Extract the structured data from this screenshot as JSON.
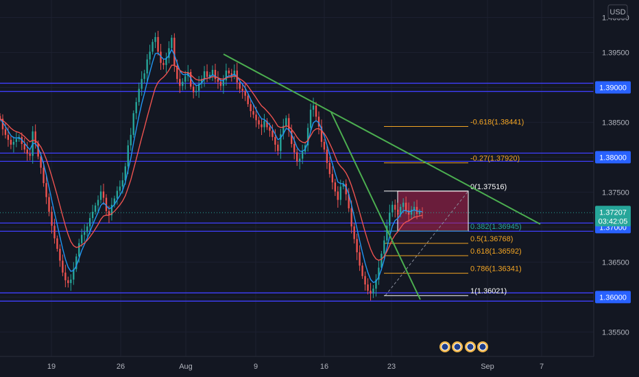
{
  "currency": "USD",
  "chart_data": {
    "type": "candlestick",
    "instrument_currency": "USD",
    "x_ticks": [
      "19",
      "26",
      "Aug",
      "9",
      "16",
      "23",
      "Sep",
      "7"
    ],
    "y_ticks": [
      "1.40000",
      "1.39500",
      "1.38500",
      "1.37500",
      "1.36500",
      "1.35500"
    ],
    "y_range": [
      1.3515,
      1.4025
    ],
    "current_price": "1.37207",
    "countdown": "03:42:05",
    "horizontal_levels": [
      {
        "price": 1.39,
        "label": "1.39000"
      },
      {
        "price": 1.38,
        "label": "1.38000"
      },
      {
        "price": 1.37,
        "label": "1.37000"
      },
      {
        "price": 1.36,
        "label": "1.36000"
      }
    ],
    "fibonacci": [
      {
        "ratio": "-0.618",
        "price": 1.38441,
        "label": "-0.618(1.38441)",
        "color": "#f5a623"
      },
      {
        "ratio": "-0.27",
        "price": 1.3792,
        "label": "-0.27(1.37920)",
        "color": "#f5a623"
      },
      {
        "ratio": "0",
        "price": 1.37516,
        "label": "0(1.37516)",
        "color": "#ffffff"
      },
      {
        "ratio": "0.382",
        "price": 1.36945,
        "label": "0.382(1.36945)",
        "color": "#26a69a"
      },
      {
        "ratio": "0.5",
        "price": 1.36768,
        "label": "0.5(1.36768)",
        "color": "#f5a623"
      },
      {
        "ratio": "0.618",
        "price": 1.36592,
        "label": "0.618(1.36592)",
        "color": "#f5a623"
      },
      {
        "ratio": "0.786",
        "price": 1.36341,
        "label": "0.786(1.36341)",
        "color": "#f5a623"
      },
      {
        "ratio": "1",
        "price": 1.36021,
        "label": "1(1.36021)",
        "color": "#ffffff"
      }
    ],
    "closes": [
      1.3855,
      1.384,
      1.3832,
      1.3825,
      1.3818,
      1.3822,
      1.3826,
      1.3829,
      1.3819,
      1.3811,
      1.3805,
      1.3802,
      1.3837,
      1.382,
      1.3801,
      1.3785,
      1.3763,
      1.3743,
      1.3722,
      1.3702,
      1.3684,
      1.3669,
      1.3652,
      1.3635,
      1.3624,
      1.362,
      1.3625,
      1.364,
      1.3658,
      1.3677,
      1.3689,
      1.3693,
      1.3701,
      1.3713,
      1.3722,
      1.3731,
      1.3739,
      1.3751,
      1.3742,
      1.3723,
      1.3717,
      1.3732,
      1.3741,
      1.3752,
      1.3758,
      1.3767,
      1.3787,
      1.3817,
      1.3832,
      1.3863,
      1.3879,
      1.3898,
      1.3912,
      1.392,
      1.394,
      1.3951,
      1.3965,
      1.3972,
      1.3951,
      1.3935,
      1.3932,
      1.3942,
      1.3956,
      1.3971,
      1.3931,
      1.3912,
      1.3902,
      1.3908,
      1.3916,
      1.3922,
      1.3901,
      1.3893,
      1.3895,
      1.3905,
      1.3912,
      1.3923,
      1.3915,
      1.3918,
      1.3925,
      1.3912,
      1.3908,
      1.3902,
      1.391,
      1.3924,
      1.392,
      1.3917,
      1.3924,
      1.3907,
      1.3898,
      1.3895,
      1.3888,
      1.3876,
      1.3866,
      1.3861,
      1.3853,
      1.3847,
      1.3843,
      1.3852,
      1.3843,
      1.3838,
      1.3829,
      1.3818,
      1.3809,
      1.3833,
      1.3845,
      1.3856,
      1.3838,
      1.3819,
      1.3807,
      1.3794,
      1.3798,
      1.3808,
      1.3817,
      1.3842,
      1.3868,
      1.3874,
      1.3858,
      1.3844,
      1.3822,
      1.3811,
      1.3792,
      1.3776,
      1.3764,
      1.3751,
      1.3739,
      1.3758,
      1.3762,
      1.3747,
      1.3727,
      1.3701,
      1.3683,
      1.3664,
      1.3645,
      1.363,
      1.3618,
      1.3609,
      1.3605,
      1.3612,
      1.3625,
      1.3642,
      1.3662,
      1.3681,
      1.3702,
      1.3721,
      1.3732,
      1.3725,
      1.3718,
      1.3729,
      1.3735,
      1.3724,
      1.3718,
      1.3725,
      1.3729,
      1.3719,
      1.3722,
      1.3721
    ]
  }
}
